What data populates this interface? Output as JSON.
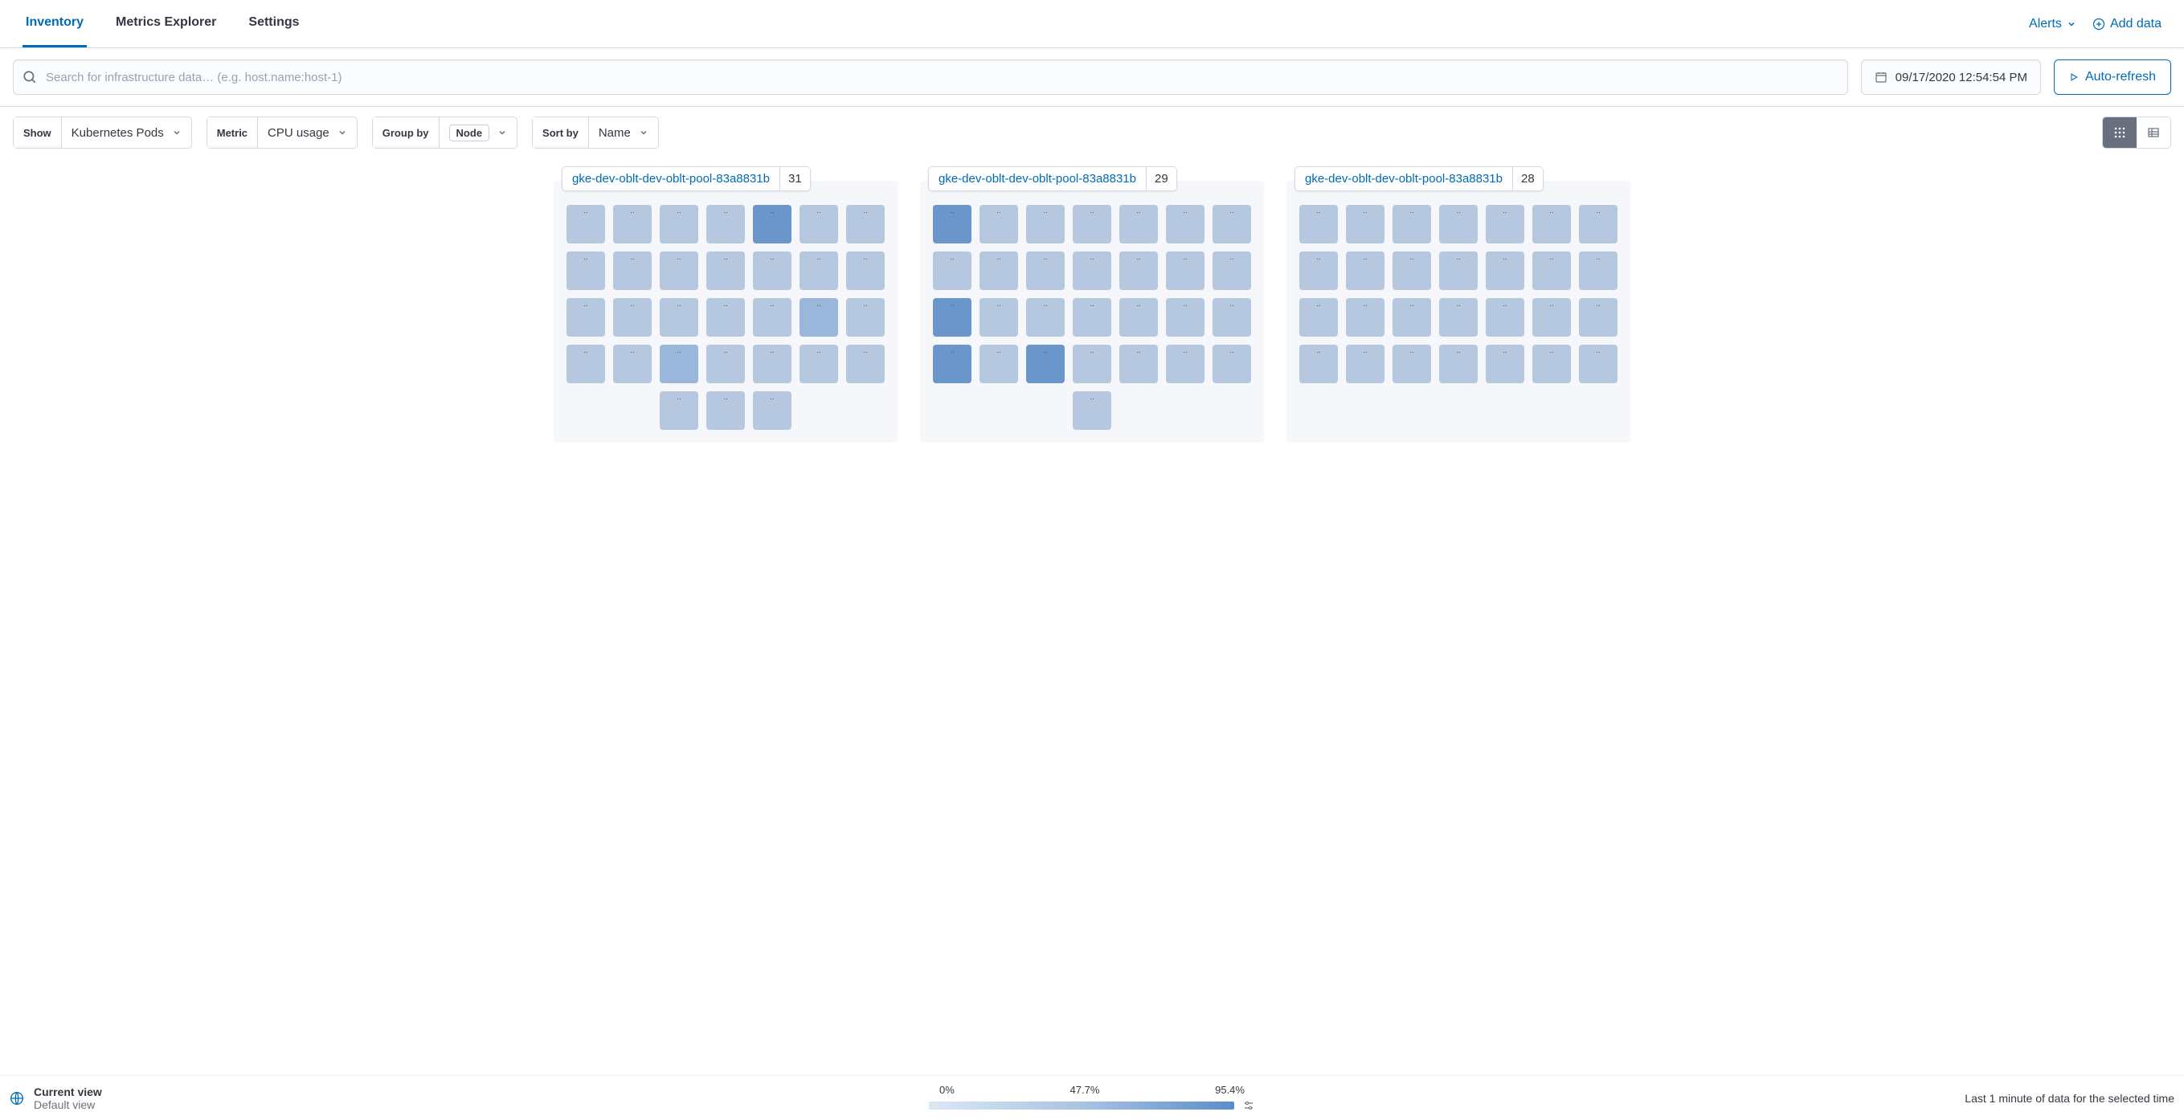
{
  "nav": {
    "tabs": [
      "Inventory",
      "Metrics Explorer",
      "Settings"
    ],
    "active_tab": 0,
    "alerts_label": "Alerts",
    "add_data_label": "Add data"
  },
  "toolbar": {
    "search_placeholder": "Search for infrastructure data… (e.g. host.name:host-1)",
    "datetime": "09/17/2020 12:54:54 PM",
    "auto_refresh_label": "Auto-refresh"
  },
  "filters": {
    "show_label": "Show",
    "show_value": "Kubernetes Pods",
    "metric_label": "Metric",
    "metric_value": "CPU usage",
    "groupby_label": "Group by",
    "groupby_chip": "Node",
    "sortby_label": "Sort by",
    "sortby_value": "Name"
  },
  "tile_colors": {
    "light": "#b6c8e0",
    "medium": "#99b7da",
    "dark": "#6a96cb"
  },
  "groups": [
    {
      "name": "gke-dev-oblt-dev-oblt-pool-83a8831b",
      "count": 31,
      "cols": 7,
      "pods": [
        {
          "i": "l"
        },
        {
          "i": "l"
        },
        {
          "i": "l"
        },
        {
          "i": "l"
        },
        {
          "i": "d"
        },
        {
          "i": "l"
        },
        {
          "i": "l"
        },
        {
          "i": "l"
        },
        {
          "i": "l"
        },
        {
          "i": "l"
        },
        {
          "i": "l"
        },
        {
          "i": "l"
        },
        {
          "i": "l"
        },
        {
          "i": "l"
        },
        {
          "i": "l"
        },
        {
          "i": "l"
        },
        {
          "i": "l"
        },
        {
          "i": "l"
        },
        {
          "i": "l"
        },
        {
          "i": "m"
        },
        {
          "i": "l"
        },
        {
          "i": "l"
        },
        {
          "i": "l"
        },
        {
          "i": "m"
        },
        {
          "i": "l"
        },
        {
          "i": "l"
        },
        {
          "i": "l"
        },
        {
          "i": "l"
        },
        {
          "i": "l"
        },
        {
          "i": "l"
        },
        {
          "i": "l"
        }
      ],
      "last_row_start": 3,
      "last_row_count": 3
    },
    {
      "name": "gke-dev-oblt-dev-oblt-pool-83a8831b",
      "count": 29,
      "cols": 7,
      "pods": [
        {
          "i": "d"
        },
        {
          "i": "l"
        },
        {
          "i": "l"
        },
        {
          "i": "l"
        },
        {
          "i": "l"
        },
        {
          "i": "l"
        },
        {
          "i": "l"
        },
        {
          "i": "l"
        },
        {
          "i": "l"
        },
        {
          "i": "l"
        },
        {
          "i": "l"
        },
        {
          "i": "l"
        },
        {
          "i": "l"
        },
        {
          "i": "l"
        },
        {
          "i": "d"
        },
        {
          "i": "l"
        },
        {
          "i": "l"
        },
        {
          "i": "l"
        },
        {
          "i": "l"
        },
        {
          "i": "l"
        },
        {
          "i": "l"
        },
        {
          "i": "d"
        },
        {
          "i": "l"
        },
        {
          "i": "d"
        },
        {
          "i": "l"
        },
        {
          "i": "l"
        },
        {
          "i": "l"
        },
        {
          "i": "l"
        },
        {
          "i": "l"
        }
      ],
      "last_row_start": 4,
      "last_row_count": 1
    },
    {
      "name": "gke-dev-oblt-dev-oblt-pool-83a8831b",
      "count": 28,
      "cols": 7,
      "pods": [
        {
          "i": "l"
        },
        {
          "i": "l"
        },
        {
          "i": "l"
        },
        {
          "i": "l"
        },
        {
          "i": "l"
        },
        {
          "i": "l"
        },
        {
          "i": "l"
        },
        {
          "i": "l"
        },
        {
          "i": "l"
        },
        {
          "i": "l"
        },
        {
          "i": "l"
        },
        {
          "i": "l"
        },
        {
          "i": "l"
        },
        {
          "i": "l"
        },
        {
          "i": "l"
        },
        {
          "i": "l"
        },
        {
          "i": "l"
        },
        {
          "i": "l"
        },
        {
          "i": "l"
        },
        {
          "i": "l"
        },
        {
          "i": "l"
        },
        {
          "i": "l"
        },
        {
          "i": "l"
        },
        {
          "i": "l"
        },
        {
          "i": "l"
        },
        {
          "i": "l"
        },
        {
          "i": "l"
        },
        {
          "i": "l"
        }
      ],
      "last_row_start": 0,
      "last_row_count": 0
    }
  ],
  "legend": {
    "values": [
      "0%",
      "47.7%",
      "95.4%"
    ]
  },
  "footer": {
    "view_title": "Current view",
    "view_sub": "Default view",
    "right_text": "Last 1 minute of data for the selected time"
  }
}
